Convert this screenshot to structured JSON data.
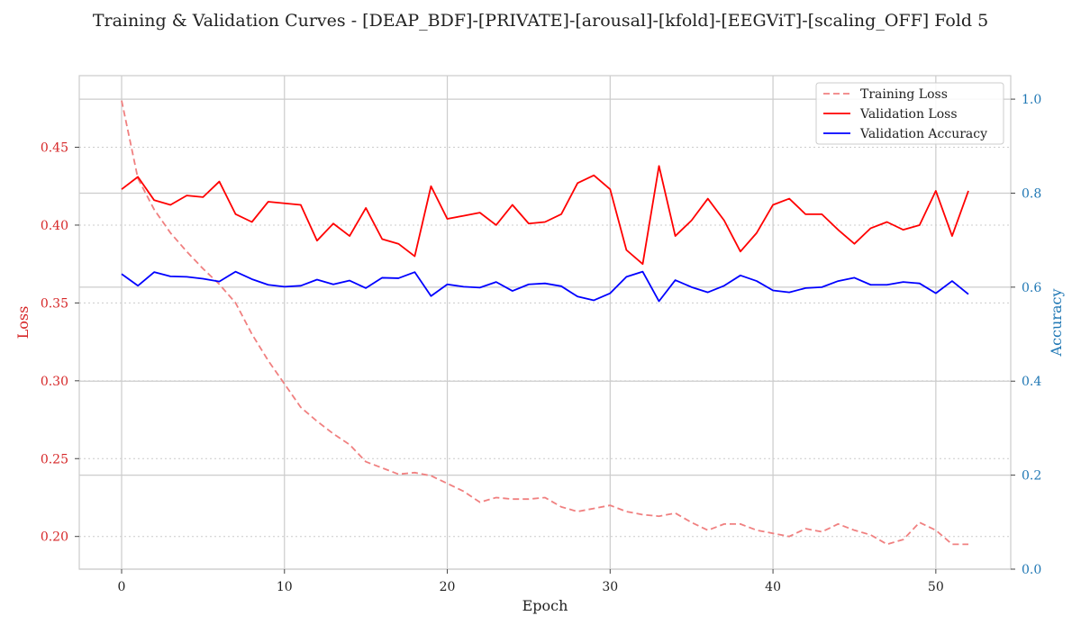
{
  "chart_data": {
    "type": "line",
    "title": "Training & Validation Curves - [DEAP_BDF]-[PRIVATE]-[arousal]-[kfold]-[EEGViT]-[scaling_OFF] Fold 5",
    "xlabel": "Epoch",
    "ylabel_left": "Loss",
    "ylabel_right": "Accuracy",
    "xlim": [
      -2.6,
      54.6
    ],
    "ylim_left": [
      0.179,
      0.496
    ],
    "ylim_right": [
      0.0,
      1.05
    ],
    "x_ticks": [
      0,
      10,
      20,
      30,
      40,
      50
    ],
    "y_ticks_left": [
      0.2,
      0.25,
      0.3,
      0.35,
      0.4,
      0.45
    ],
    "y_ticks_left_labels": [
      "0.20",
      "0.25",
      "0.30",
      "0.35",
      "0.40",
      "0.45"
    ],
    "y_ticks_right": [
      0.0,
      0.2,
      0.4,
      0.6,
      0.8,
      1.0
    ],
    "y_ticks_right_labels": [
      "0.0",
      "0.2",
      "0.4",
      "0.6",
      "0.8",
      "1.0"
    ],
    "grid": true,
    "legend_position": "top-right",
    "colors": {
      "training_loss": "#f08080",
      "validation_loss": "#ff0000",
      "validation_accuracy": "#0000ff",
      "left_axis": "#d62728",
      "right_axis": "#1f77b4"
    },
    "x": [
      0,
      1,
      2,
      3,
      4,
      5,
      6,
      7,
      8,
      9,
      10,
      11,
      12,
      13,
      14,
      15,
      16,
      17,
      18,
      19,
      20,
      21,
      22,
      23,
      24,
      25,
      26,
      27,
      28,
      29,
      30,
      31,
      32,
      33,
      34,
      35,
      36,
      37,
      38,
      39,
      40,
      41,
      42,
      43,
      44,
      45,
      46,
      47,
      48,
      49,
      50,
      51,
      52
    ],
    "series": [
      {
        "name": "Training Loss",
        "axis": "left",
        "style": "dashed",
        "values": [
          0.48,
          0.43,
          0.41,
          0.395,
          0.383,
          0.372,
          0.362,
          0.35,
          0.33,
          0.313,
          0.298,
          0.283,
          0.274,
          0.266,
          0.259,
          0.248,
          0.244,
          0.24,
          0.241,
          0.239,
          0.234,
          0.229,
          0.222,
          0.225,
          0.224,
          0.224,
          0.225,
          0.219,
          0.216,
          0.218,
          0.22,
          0.216,
          0.214,
          0.213,
          0.215,
          0.209,
          0.204,
          0.208,
          0.208,
          0.204,
          0.202,
          0.2,
          0.205,
          0.203,
          0.208,
          0.204,
          0.201,
          0.195,
          0.198,
          0.209,
          0.204,
          0.195,
          0.195
        ]
      },
      {
        "name": "Validation Loss",
        "axis": "left",
        "style": "solid",
        "values": [
          0.423,
          0.431,
          0.416,
          0.413,
          0.419,
          0.418,
          0.428,
          0.407,
          0.402,
          0.415,
          0.414,
          0.413,
          0.39,
          0.401,
          0.393,
          0.411,
          0.391,
          0.388,
          0.38,
          0.425,
          0.404,
          0.406,
          0.408,
          0.4,
          0.413,
          0.401,
          0.402,
          0.407,
          0.427,
          0.432,
          0.423,
          0.384,
          0.375,
          0.438,
          0.393,
          0.403,
          0.417,
          0.403,
          0.383,
          0.395,
          0.413,
          0.417,
          0.407,
          0.407,
          0.397,
          0.388,
          0.398,
          0.402,
          0.397,
          0.4,
          0.422,
          0.393,
          0.422
        ]
      },
      {
        "name": "Validation Accuracy",
        "axis": "right",
        "style": "solid",
        "values": [
          0.628,
          0.603,
          0.632,
          0.623,
          0.622,
          0.618,
          0.612,
          0.633,
          0.617,
          0.605,
          0.601,
          0.603,
          0.616,
          0.606,
          0.614,
          0.598,
          0.62,
          0.619,
          0.632,
          0.581,
          0.606,
          0.601,
          0.599,
          0.611,
          0.592,
          0.606,
          0.608,
          0.602,
          0.58,
          0.572,
          0.587,
          0.622,
          0.633,
          0.57,
          0.615,
          0.6,
          0.589,
          0.603,
          0.625,
          0.613,
          0.593,
          0.589,
          0.598,
          0.6,
          0.613,
          0.62,
          0.605,
          0.605,
          0.611,
          0.608,
          0.587,
          0.613,
          0.585
        ]
      }
    ]
  }
}
